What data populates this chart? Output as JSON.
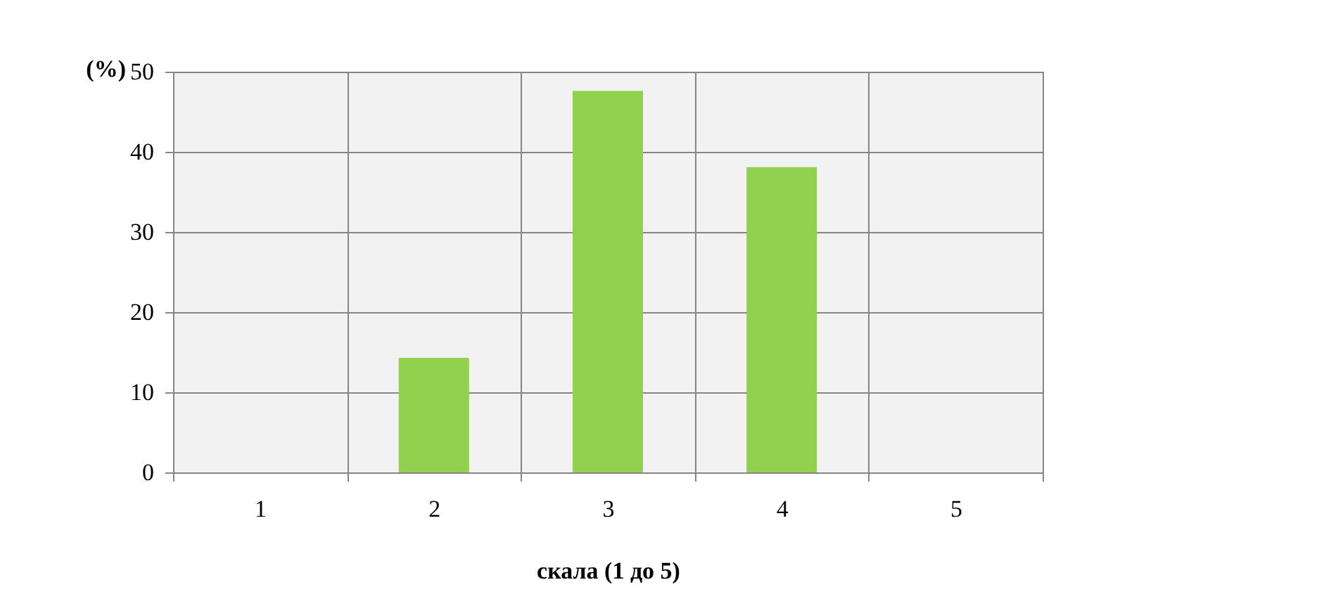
{
  "chart_data": {
    "type": "bar",
    "ylabel": "(%)",
    "xlabel": "скала (1 до 5)",
    "categories": [
      "1",
      "2",
      "3",
      "4",
      "5"
    ],
    "values": [
      0,
      14.3,
      47.6,
      38.1,
      0
    ],
    "color": "#92d050",
    "ylim": [
      0,
      50
    ],
    "yticks": [
      0,
      10,
      20,
      30,
      40,
      50
    ],
    "grid": true
  }
}
